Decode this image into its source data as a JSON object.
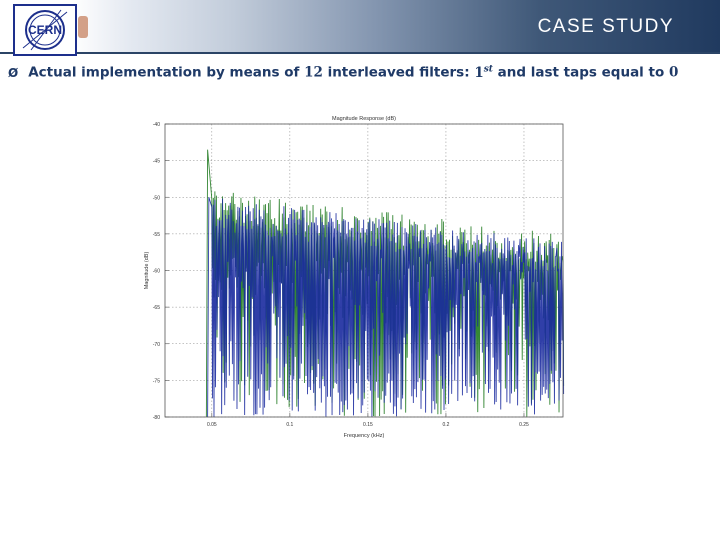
{
  "header": {
    "title": "CASE STUDY",
    "logo_text": "CERN"
  },
  "bullet": {
    "marker": "Ø",
    "text_part1": "Actual implementation by means of",
    "number": "12",
    "text_part2": "interleaved filters:",
    "ordinal": "1",
    "ordinal_sup": "st",
    "text_part3": "and last taps equal to",
    "zero": "0"
  },
  "chart_data": {
    "type": "line",
    "title": "Magnitude Response (dB)",
    "xlabel": "Frequency (kHz)",
    "ylabel": "Magnitude (dB)",
    "xlim": [
      0.02,
      0.275
    ],
    "ylim": [
      -80,
      -40
    ],
    "xticks": [
      0.05,
      0.1,
      0.15,
      0.2,
      0.25
    ],
    "xtick_labels": [
      "0.05",
      "0.1",
      "0.15",
      "0.2",
      "0.25"
    ],
    "yticks": [
      -40,
      -45,
      -50,
      -55,
      -60,
      -65,
      -70,
      -75,
      -80
    ],
    "ytick_labels": [
      "-40",
      "-45",
      "-50",
      "-55",
      "-60",
      "-65",
      "-70",
      "-75",
      "-80"
    ],
    "grid": "dotted",
    "passband_edge": 0.05,
    "series": [
      {
        "color": "#1f7a1f",
        "style": "dense oscillating stopband ripple",
        "peak": -43.5,
        "start_top": -49,
        "end_top": -55
      },
      {
        "color": "#1a2a9e",
        "style": "dense oscillating stopband ripple",
        "peak": -50,
        "start_top": -50,
        "end_top": -56
      }
    ]
  }
}
